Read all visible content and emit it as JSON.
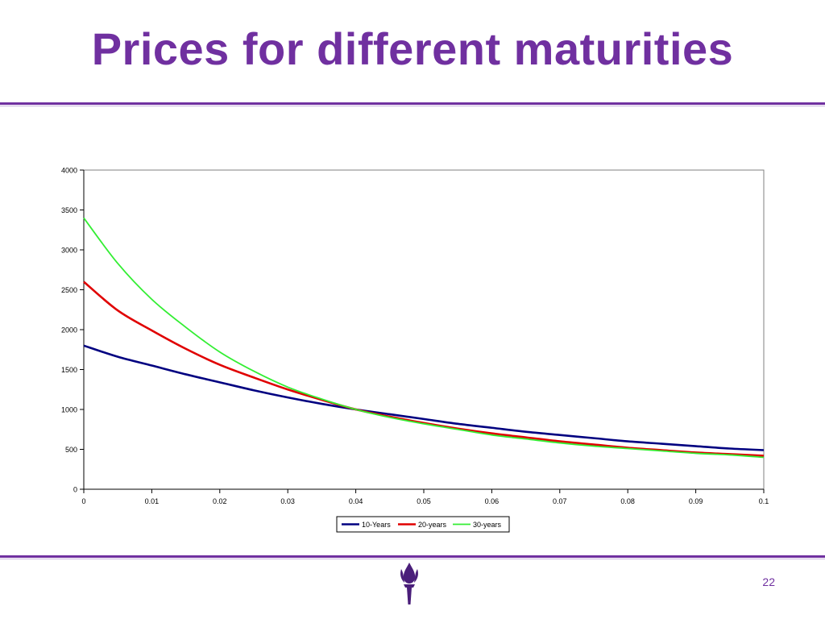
{
  "slide": {
    "title": "Prices for different maturities",
    "page_number": "22",
    "accent_color": "#7030a0"
  },
  "logo": {
    "icon": "torch-icon",
    "color": "#4a1e7a"
  },
  "chart_data": {
    "type": "line",
    "title": "",
    "xlabel": "",
    "ylabel": "",
    "xlim": [
      0,
      0.1
    ],
    "ylim": [
      0,
      4000
    ],
    "x_ticks": [
      0,
      0.01,
      0.02,
      0.03,
      0.04,
      0.05,
      0.06,
      0.07,
      0.08,
      0.09,
      0.1
    ],
    "y_ticks": [
      0,
      500,
      1000,
      1500,
      2000,
      2500,
      3000,
      3500,
      4000
    ],
    "grid": false,
    "legend_position": "bottom",
    "x": [
      0,
      0.005,
      0.01,
      0.015,
      0.02,
      0.025,
      0.03,
      0.035,
      0.04,
      0.045,
      0.05,
      0.055,
      0.06,
      0.065,
      0.07,
      0.075,
      0.08,
      0.085,
      0.09,
      0.095,
      0.1
    ],
    "series": [
      {
        "name": "10-Years",
        "color": "#000080",
        "values": [
          1800,
          1660,
          1550,
          1440,
          1340,
          1240,
          1150,
          1070,
          1000,
          940,
          880,
          820,
          770,
          720,
          680,
          640,
          600,
          570,
          540,
          510,
          490
        ]
      },
      {
        "name": "20-years",
        "color": "#e00000",
        "values": [
          2600,
          2240,
          1990,
          1760,
          1560,
          1400,
          1250,
          1120,
          1000,
          910,
          830,
          760,
          700,
          650,
          600,
          560,
          520,
          490,
          460,
          440,
          420
        ]
      },
      {
        "name": "30-years",
        "color": "#33ee33",
        "values": [
          3400,
          2830,
          2380,
          2030,
          1720,
          1480,
          1280,
          1130,
          1000,
          900,
          820,
          750,
          680,
          630,
          580,
          540,
          510,
          480,
          450,
          430,
          400
        ]
      }
    ]
  }
}
